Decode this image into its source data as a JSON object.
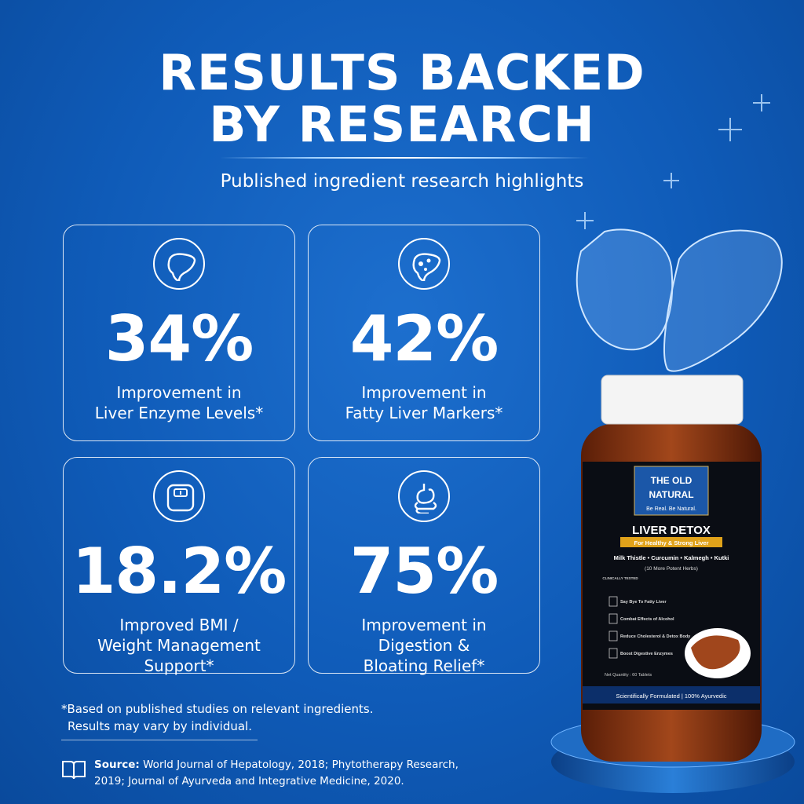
{
  "header": {
    "title_lines": [
      "RESULTS BACKED",
      "BY RESEARCH"
    ],
    "subtitle": "Published ingredient research highlights"
  },
  "stats": [
    {
      "value": "34%",
      "label_lines": [
        "Improvement in",
        "Liver Enzyme Levels*"
      ]
    },
    {
      "value": "42%",
      "label_lines": [
        "Improvement in",
        "Fatty Liver Markers*"
      ]
    },
    {
      "value": "18.2%",
      "label_lines": [
        "Improved BMI /",
        "Weight Management",
        "Support*"
      ]
    },
    {
      "value": "75%",
      "label_lines": [
        "Improvement in",
        "Digestion &",
        "Bloating Relief*"
      ]
    }
  ],
  "footnote_lines": [
    "*Based on published studies on relevant ingredients.",
    "Results may vary by individual."
  ],
  "source": {
    "label": "Source:",
    "text_lines": [
      "World Journal of Hepatology, 2018; Phytotherapy Research,",
      "2019; Journal of Ayurveda and Integrative Medicine, 2020."
    ]
  },
  "product": {
    "brand_lines": [
      "THE OLD",
      "NATURAL"
    ],
    "tagline": "Be Real. Be Natural.",
    "name": "LIVER DETOX",
    "claim": "For Healthy & Strong Liver",
    "ingredients": "Milk Thistle • Curcumin • Kalmegh • Kutki",
    "more": "(10 More Potent Herbs)",
    "badge": "CLINICALLY TESTED",
    "benefits": [
      "Say Bye To Fatty Liver",
      "Combat Effects of Alcohol",
      "Reduce Cholesterol & Detox Body",
      "Boost Digestive Enzymes"
    ],
    "quantity": "Net Quantity : 60 Tablets",
    "footer": "Scientifically Formulated | 100% Ayurvedic"
  }
}
